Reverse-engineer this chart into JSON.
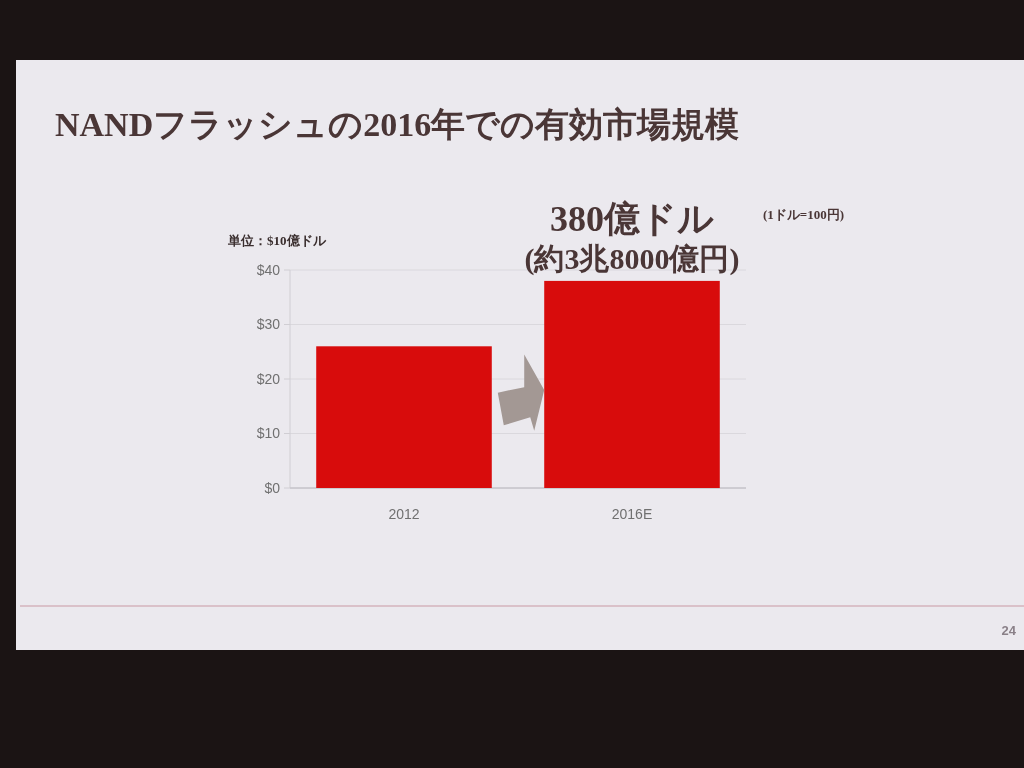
{
  "chart_data": {
    "type": "bar",
    "title": "NANDフラッシュの2016年での有効市場規模",
    "ylabel": "単位：$10億ドル",
    "categories": [
      "2012",
      "2016E"
    ],
    "values": [
      26,
      38
    ],
    "color": "#d80c0c",
    "ylim": [
      0,
      40
    ],
    "yticks": [
      {
        "value": 0,
        "label": "$0"
      },
      {
        "value": 10,
        "label": "$10"
      },
      {
        "value": 20,
        "label": "$20"
      },
      {
        "value": 30,
        "label": "$30"
      },
      {
        "value": 40,
        "label": "$40"
      }
    ],
    "grid": "y",
    "annotations": [
      {
        "text": "380億ドル",
        "x": "2016E",
        "y": 38
      },
      {
        "text": "(約3兆8000億円)",
        "x": "2016E",
        "y": 38
      },
      "(1ドル=100円)",
      "24"
    ]
  }
}
